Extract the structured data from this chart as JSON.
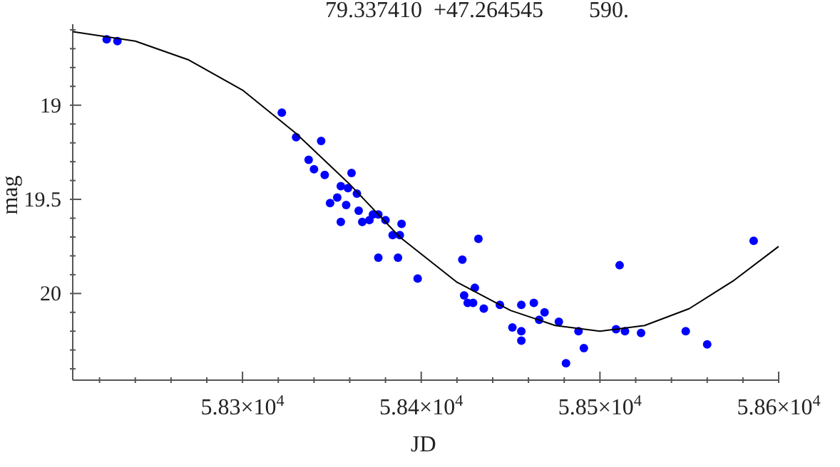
{
  "chart_data": {
    "type": "scatter",
    "title": "79.337410  +47.264545        590.",
    "xlabel": "JD",
    "ylabel": "mag",
    "xlim": [
      58205,
      58600
    ],
    "xticks": [
      {
        "value": 58220,
        "label": null
      },
      {
        "value": 58240,
        "label": null
      },
      {
        "value": 58260,
        "label": null
      },
      {
        "value": 58280,
        "label": null
      },
      {
        "value": 58300,
        "label": "5.83×10$^{4}$"
      },
      {
        "value": 58320,
        "label": null
      },
      {
        "value": 58340,
        "label": null
      },
      {
        "value": 58360,
        "label": null
      },
      {
        "value": 58380,
        "label": null
      },
      {
        "value": 58400,
        "label": "5.84×10$^{4}$"
      },
      {
        "value": 58420,
        "label": null
      },
      {
        "value": 58440,
        "label": null
      },
      {
        "value": 58460,
        "label": null
      },
      {
        "value": 58480,
        "label": null
      },
      {
        "value": 58500,
        "label": "5.85×10$^{4}$"
      },
      {
        "value": 58520,
        "label": null
      },
      {
        "value": 58540,
        "label": null
      },
      {
        "value": 58560,
        "label": null
      },
      {
        "value": 58580,
        "label": null
      },
      {
        "value": 58600,
        "label": "5.86×10$^{4}$"
      }
    ],
    "ylim": [
      20.46,
      18.57
    ],
    "yticks": [
      {
        "value": 18.6,
        "label": null
      },
      {
        "value": 18.7,
        "label": null
      },
      {
        "value": 18.8,
        "label": null
      },
      {
        "value": 18.9,
        "label": null
      },
      19,
      {
        "value": 19.1,
        "label": null
      },
      {
        "value": 19.2,
        "label": null
      },
      {
        "value": 19.3,
        "label": null
      },
      {
        "value": 19.4,
        "label": null
      },
      19.5,
      {
        "value": 19.6,
        "label": null
      },
      {
        "value": 19.7,
        "label": null
      },
      {
        "value": 19.8,
        "label": null
      },
      {
        "value": 19.9,
        "label": null
      },
      20,
      {
        "value": 20.1,
        "label": null
      },
      {
        "value": 20.2,
        "label": null
      },
      {
        "value": 20.3,
        "label": null
      },
      {
        "value": 20.4,
        "label": null
      }
    ],
    "series": [
      {
        "marker": "circle",
        "color": "#0000ff",
        "x": [
          58224,
          58230,
          58322,
          58330,
          58344,
          58337,
          58340,
          58346,
          58361,
          58355,
          58359,
          58353,
          58349,
          58364,
          58358,
          58365,
          58355,
          58367,
          58371,
          58373,
          58376,
          58380,
          58389,
          58384,
          58388,
          58376,
          58387,
          58398,
          58432,
          58423,
          58511,
          58586,
          58430,
          58424,
          58426,
          58429,
          58435,
          58444,
          58456,
          58463,
          58469,
          58466,
          58477,
          58451,
          58456,
          58456,
          58488,
          58491,
          58481,
          58509,
          58514,
          58523,
          58548,
          58560
        ],
        "values": [
          18.65,
          18.66,
          19.04,
          19.17,
          19.19,
          19.29,
          19.34,
          19.37,
          19.36,
          19.43,
          19.44,
          19.49,
          19.52,
          19.47,
          19.53,
          19.56,
          19.62,
          19.62,
          19.61,
          19.58,
          19.58,
          19.61,
          19.63,
          19.69,
          19.69,
          19.81,
          19.81,
          19.92,
          19.71,
          19.82,
          19.85,
          19.72,
          19.97,
          20.01,
          20.05,
          20.05,
          20.08,
          20.06,
          20.06,
          20.05,
          20.1,
          20.14,
          20.15,
          20.18,
          20.2,
          20.25,
          20.2,
          20.29,
          20.37,
          20.19,
          20.2,
          20.21,
          20.2,
          20.27
        ]
      },
      {
        "type": "line",
        "marker": "none",
        "color": "#000000",
        "x": [
          58205,
          58240,
          58270,
          58300,
          58330,
          58360,
          58388,
          58420,
          58450,
          58475,
          58500,
          58525,
          58550,
          58575,
          58600
        ],
        "values": [
          18.61,
          18.66,
          18.76,
          18.92,
          19.15,
          19.42,
          19.7,
          19.94,
          20.09,
          20.17,
          20.2,
          20.17,
          20.08,
          19.93,
          19.75
        ]
      }
    ]
  }
}
